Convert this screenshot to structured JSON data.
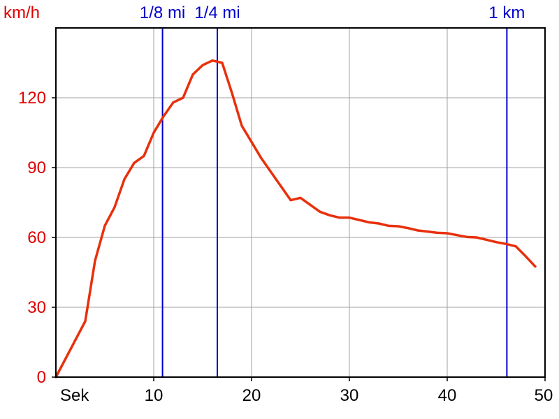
{
  "chart_data": {
    "type": "line",
    "ylabel": "km/h",
    "xlabel": "Sek",
    "xlim": [
      0,
      50
    ],
    "ylim": [
      0,
      150
    ],
    "grid": true,
    "x_ticks": [
      10,
      20,
      30,
      40,
      50
    ],
    "y_ticks": [
      0,
      30,
      60,
      90,
      120
    ],
    "colors": {
      "line": "#e8300c",
      "axis_labels": "#e00000",
      "markers": "#0000cc",
      "grid": "#a0a0a0"
    },
    "series": [
      {
        "x": [
          0,
          1,
          2,
          3,
          4,
          5,
          6,
          7,
          8,
          9,
          10,
          11,
          12,
          13,
          14,
          15,
          16,
          17,
          18,
          19,
          20,
          21,
          22,
          23,
          24,
          25,
          26,
          27,
          28,
          29,
          30,
          31,
          32,
          33,
          34,
          35,
          36,
          37,
          38,
          39,
          40,
          41,
          42,
          43,
          44,
          45,
          46,
          47,
          48,
          49
        ],
        "y": [
          0,
          8,
          16,
          24,
          50,
          65,
          73,
          85,
          92,
          95,
          105,
          112,
          118,
          120,
          130,
          134,
          136,
          135,
          122,
          108,
          101,
          94,
          88,
          82,
          76,
          77,
          74,
          71,
          69.5,
          68.5,
          68.5,
          67.5,
          66.5,
          66,
          65,
          64.8,
          64,
          63,
          62.5,
          62,
          61.8,
          61,
          60.2,
          60,
          59,
          58,
          57.2,
          56.2,
          52,
          47.5
        ]
      }
    ],
    "markers": [
      {
        "label": "1/8 mi",
        "x": 10.9
      },
      {
        "label": "1/4 mi",
        "x": 16.5
      },
      {
        "label": "1 km",
        "x": 46.1
      }
    ]
  }
}
